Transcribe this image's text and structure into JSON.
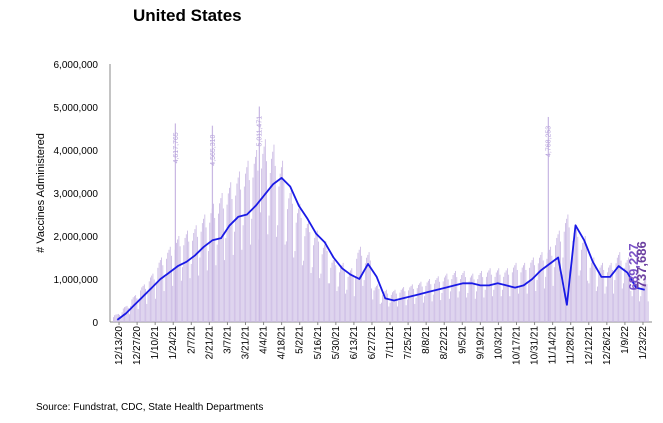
{
  "title": "United States",
  "source": "Source: Fundstrat, CDC, State Health Departments",
  "chart_data": {
    "type": "bar",
    "ylabel": "# Vaccines Administered",
    "ylim": [
      0,
      6000000
    ],
    "yticks": [
      "0",
      "1,000,000",
      "2,000,000",
      "3,000,000",
      "4,000,000",
      "5,000,000",
      "6,000,000"
    ],
    "xticks": [
      "12/13/20",
      "12/27/20",
      "1/10/21",
      "1/24/21",
      "2/7/21",
      "2/21/21",
      "3/7/21",
      "3/21/21",
      "4/4/21",
      "4/18/21",
      "5/2/21",
      "5/16/21",
      "5/30/21",
      "6/13/21",
      "6/27/21",
      "7/11/21",
      "7/25/21",
      "8/8/21",
      "8/22/21",
      "9/5/21",
      "9/19/21",
      "10/3/21",
      "10/17/21",
      "10/31/21",
      "11/14/21",
      "11/28/21",
      "12/12/21",
      "12/26/21",
      "1/9/22",
      "1/23/22"
    ],
    "series": [
      {
        "kind": "daily-bars",
        "color": "#c9b8e3",
        "approx_weekly_values": [
          150000,
          300000,
          500000,
          700000,
          900000,
          1200000,
          1400000,
          1600000,
          1700000,
          1800000,
          2000000,
          2200000,
          2400000,
          2600000,
          2800000,
          3000000,
          3200000,
          3400000,
          3300000,
          3000000,
          2500000,
          2200000,
          1900000,
          1700000,
          1500000,
          1200000,
          1100000,
          1000000,
          1400000,
          1300000,
          700000,
          600000,
          600000,
          650000,
          700000,
          750000,
          800000,
          850000,
          900000,
          950000,
          950000,
          900000,
          950000,
          1000000,
          1000000,
          1000000,
          1100000,
          1100000,
          1200000,
          1300000,
          1400000,
          1700000,
          2000000,
          1800000,
          1600000,
          1200000,
          1100000,
          1100000,
          1300000,
          1200000,
          800000,
          800000
        ],
        "spikes": [
          {
            "label": "4,617,765",
            "value": 4617765
          },
          {
            "label": "4,565,310",
            "value": 4565310
          },
          {
            "label": "5,011,471",
            "value": 5011471
          },
          {
            "label": "4,768,253",
            "value": 4768253
          }
        ]
      },
      {
        "kind": "7-day-average",
        "color": "#1a1ae6",
        "approx_weekly_values": [
          50000,
          200000,
          400000,
          600000,
          800000,
          1000000,
          1150000,
          1300000,
          1400000,
          1550000,
          1750000,
          1900000,
          1950000,
          2250000,
          2450000,
          2500000,
          2700000,
          2950000,
          3200000,
          3350000,
          3150000,
          2700000,
          2400000,
          2050000,
          1850000,
          1500000,
          1250000,
          1100000,
          1000000,
          1350000,
          1050000,
          550000,
          500000,
          550000,
          600000,
          650000,
          700000,
          750000,
          800000,
          850000,
          900000,
          900000,
          850000,
          850000,
          900000,
          850000,
          800000,
          850000,
          1000000,
          1200000,
          1350000,
          1500000,
          400000,
          2250000,
          1900000,
          1400000,
          1050000,
          1050000,
          1300000,
          1150000,
          800000,
          750000
        ]
      }
    ],
    "annotations": [
      {
        "label": "689,227",
        "value": 689227,
        "color": "#7a52c7"
      },
      {
        "label": "737,686",
        "value": 737686,
        "color": "#6b3fa0"
      }
    ]
  }
}
